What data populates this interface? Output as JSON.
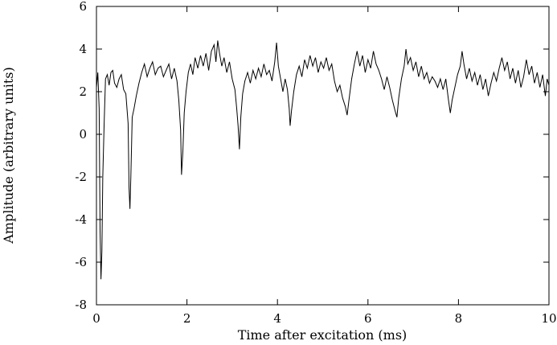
{
  "chart_data": {
    "type": "line",
    "title": "",
    "xlabel": "Time after excitation (ms)",
    "ylabel": "Amplitude (arbitrary units)",
    "xlim": [
      0,
      10
    ],
    "ylim": [
      -8,
      6
    ],
    "xticks": [
      0,
      2,
      4,
      6,
      8,
      10
    ],
    "yticks": [
      -8,
      -6,
      -4,
      -2,
      0,
      2,
      4,
      6
    ],
    "grid": false,
    "legend": "none",
    "line_color": "#000000",
    "series": [
      {
        "points": [
          [
            0.0,
            2.2
          ],
          [
            0.03,
            2.9
          ],
          [
            0.06,
            1.2
          ],
          [
            0.08,
            -4.5
          ],
          [
            0.1,
            -6.8
          ],
          [
            0.12,
            -5.5
          ],
          [
            0.14,
            -2.0
          ],
          [
            0.17,
            0.5
          ],
          [
            0.2,
            2.6
          ],
          [
            0.24,
            2.8
          ],
          [
            0.28,
            2.3
          ],
          [
            0.32,
            2.9
          ],
          [
            0.36,
            3.0
          ],
          [
            0.4,
            2.4
          ],
          [
            0.45,
            2.2
          ],
          [
            0.5,
            2.6
          ],
          [
            0.55,
            2.8
          ],
          [
            0.6,
            2.1
          ],
          [
            0.65,
            1.9
          ],
          [
            0.7,
            0.5
          ],
          [
            0.72,
            -2.5
          ],
          [
            0.74,
            -3.5
          ],
          [
            0.76,
            -2.0
          ],
          [
            0.79,
            0.8
          ],
          [
            0.83,
            1.2
          ],
          [
            0.88,
            1.8
          ],
          [
            0.94,
            2.4
          ],
          [
            1.0,
            2.9
          ],
          [
            1.06,
            3.3
          ],
          [
            1.12,
            2.7
          ],
          [
            1.18,
            3.1
          ],
          [
            1.24,
            3.4
          ],
          [
            1.3,
            2.8
          ],
          [
            1.36,
            3.1
          ],
          [
            1.42,
            3.2
          ],
          [
            1.48,
            2.7
          ],
          [
            1.54,
            3.0
          ],
          [
            1.6,
            3.3
          ],
          [
            1.66,
            2.6
          ],
          [
            1.72,
            3.1
          ],
          [
            1.78,
            2.5
          ],
          [
            1.82,
            1.6
          ],
          [
            1.86,
            0.2
          ],
          [
            1.88,
            -1.9
          ],
          [
            1.91,
            -0.8
          ],
          [
            1.94,
            1.0
          ],
          [
            1.98,
            2.0
          ],
          [
            2.03,
            2.9
          ],
          [
            2.08,
            3.3
          ],
          [
            2.13,
            2.8
          ],
          [
            2.18,
            3.6
          ],
          [
            2.24,
            3.1
          ],
          [
            2.3,
            3.7
          ],
          [
            2.36,
            3.2
          ],
          [
            2.42,
            3.8
          ],
          [
            2.48,
            3.0
          ],
          [
            2.54,
            3.9
          ],
          [
            2.6,
            4.2
          ],
          [
            2.64,
            3.4
          ],
          [
            2.68,
            4.4
          ],
          [
            2.72,
            3.8
          ],
          [
            2.77,
            3.2
          ],
          [
            2.82,
            3.6
          ],
          [
            2.88,
            2.9
          ],
          [
            2.94,
            3.4
          ],
          [
            3.0,
            2.6
          ],
          [
            3.06,
            2.1
          ],
          [
            3.1,
            1.2
          ],
          [
            3.13,
            0.4
          ],
          [
            3.16,
            -0.7
          ],
          [
            3.19,
            0.8
          ],
          [
            3.23,
            1.9
          ],
          [
            3.28,
            2.5
          ],
          [
            3.34,
            2.9
          ],
          [
            3.4,
            2.4
          ],
          [
            3.46,
            3.0
          ],
          [
            3.52,
            2.6
          ],
          [
            3.58,
            3.1
          ],
          [
            3.64,
            2.7
          ],
          [
            3.7,
            3.3
          ],
          [
            3.76,
            2.8
          ],
          [
            3.82,
            3.0
          ],
          [
            3.88,
            2.5
          ],
          [
            3.94,
            3.4
          ],
          [
            3.98,
            4.3
          ],
          [
            4.02,
            3.2
          ],
          [
            4.07,
            2.6
          ],
          [
            4.12,
            2.0
          ],
          [
            4.17,
            2.6
          ],
          [
            4.22,
            2.1
          ],
          [
            4.26,
            1.2
          ],
          [
            4.28,
            0.4
          ],
          [
            4.31,
            1.1
          ],
          [
            4.36,
            2.0
          ],
          [
            4.42,
            2.8
          ],
          [
            4.48,
            3.2
          ],
          [
            4.54,
            2.7
          ],
          [
            4.6,
            3.5
          ],
          [
            4.66,
            3.1
          ],
          [
            4.72,
            3.7
          ],
          [
            4.78,
            3.2
          ],
          [
            4.84,
            3.6
          ],
          [
            4.9,
            2.9
          ],
          [
            4.96,
            3.4
          ],
          [
            5.02,
            3.1
          ],
          [
            5.08,
            3.6
          ],
          [
            5.14,
            3.0
          ],
          [
            5.2,
            3.3
          ],
          [
            5.26,
            2.5
          ],
          [
            5.32,
            2.0
          ],
          [
            5.38,
            2.3
          ],
          [
            5.44,
            1.7
          ],
          [
            5.5,
            1.3
          ],
          [
            5.54,
            0.9
          ],
          [
            5.58,
            1.6
          ],
          [
            5.64,
            2.6
          ],
          [
            5.7,
            3.3
          ],
          [
            5.76,
            3.9
          ],
          [
            5.82,
            3.2
          ],
          [
            5.88,
            3.7
          ],
          [
            5.94,
            2.9
          ],
          [
            6.0,
            3.5
          ],
          [
            6.06,
            3.1
          ],
          [
            6.12,
            3.9
          ],
          [
            6.18,
            3.3
          ],
          [
            6.24,
            3.0
          ],
          [
            6.3,
            2.6
          ],
          [
            6.36,
            2.1
          ],
          [
            6.42,
            2.7
          ],
          [
            6.48,
            2.2
          ],
          [
            6.54,
            1.6
          ],
          [
            6.6,
            1.1
          ],
          [
            6.64,
            0.8
          ],
          [
            6.68,
            1.7
          ],
          [
            6.74,
            2.6
          ],
          [
            6.8,
            3.2
          ],
          [
            6.84,
            4.0
          ],
          [
            6.88,
            3.3
          ],
          [
            6.94,
            3.6
          ],
          [
            7.0,
            3.0
          ],
          [
            7.06,
            3.4
          ],
          [
            7.12,
            2.7
          ],
          [
            7.18,
            3.2
          ],
          [
            7.24,
            2.6
          ],
          [
            7.3,
            2.9
          ],
          [
            7.36,
            2.4
          ],
          [
            7.42,
            2.7
          ],
          [
            7.48,
            2.5
          ],
          [
            7.54,
            2.2
          ],
          [
            7.6,
            2.6
          ],
          [
            7.66,
            2.1
          ],
          [
            7.72,
            2.6
          ],
          [
            7.78,
            1.6
          ],
          [
            7.82,
            1.0
          ],
          [
            7.86,
            1.6
          ],
          [
            7.92,
            2.2
          ],
          [
            7.98,
            2.8
          ],
          [
            8.04,
            3.2
          ],
          [
            8.08,
            3.9
          ],
          [
            8.12,
            3.3
          ],
          [
            8.18,
            2.6
          ],
          [
            8.24,
            3.1
          ],
          [
            8.3,
            2.5
          ],
          [
            8.36,
            2.9
          ],
          [
            8.42,
            2.3
          ],
          [
            8.48,
            2.8
          ],
          [
            8.54,
            2.1
          ],
          [
            8.6,
            2.6
          ],
          [
            8.66,
            1.8
          ],
          [
            8.72,
            2.4
          ],
          [
            8.78,
            2.9
          ],
          [
            8.84,
            2.5
          ],
          [
            8.9,
            3.1
          ],
          [
            8.96,
            3.6
          ],
          [
            9.02,
            3.0
          ],
          [
            9.08,
            3.4
          ],
          [
            9.14,
            2.6
          ],
          [
            9.2,
            3.1
          ],
          [
            9.26,
            2.4
          ],
          [
            9.32,
            3.0
          ],
          [
            9.38,
            2.2
          ],
          [
            9.44,
            2.7
          ],
          [
            9.5,
            3.5
          ],
          [
            9.56,
            2.8
          ],
          [
            9.62,
            3.2
          ],
          [
            9.68,
            2.4
          ],
          [
            9.74,
            2.9
          ],
          [
            9.8,
            2.2
          ],
          [
            9.86,
            2.8
          ],
          [
            9.92,
            1.8
          ],
          [
            9.96,
            2.6
          ],
          [
            10.0,
            2.3
          ]
        ]
      }
    ]
  }
}
